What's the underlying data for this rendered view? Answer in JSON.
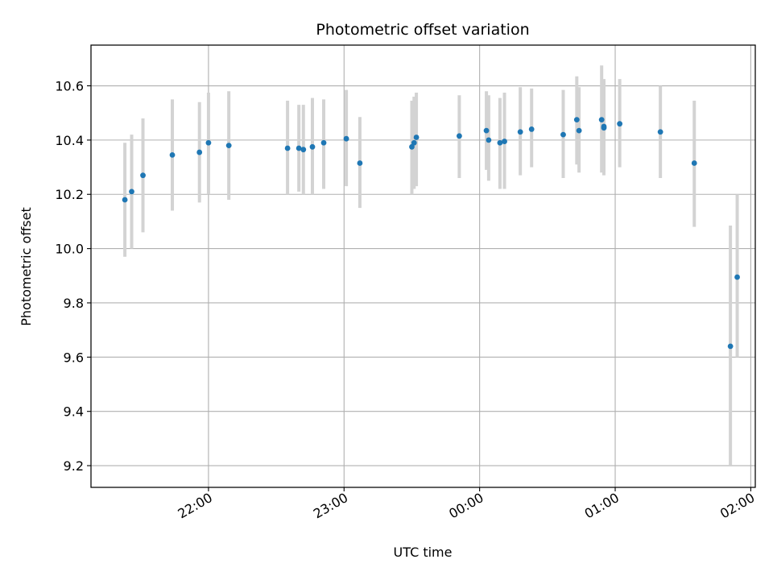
{
  "chart_data": {
    "type": "scatter",
    "title": "Photometric offset variation",
    "xlabel": "UTC time",
    "ylabel": "Photometric offset",
    "x_ticks": [
      "22:00",
      "23:00",
      "00:00",
      "01:00",
      "02:00"
    ],
    "y_ticks": [
      "9.2",
      "9.4",
      "9.6",
      "9.8",
      "10.0",
      "10.2",
      "10.4",
      "10.6"
    ],
    "xlim": [
      "21:08",
      "02:02"
    ],
    "ylim": [
      9.12,
      10.75
    ],
    "grid": true,
    "colors": {
      "points": "#1f77b4",
      "error_bars": "#d3d3d3",
      "grid": "#b0b0b0"
    },
    "points": [
      {
        "x": "21:23",
        "y": 10.18,
        "lo": 9.97,
        "hi": 10.39
      },
      {
        "x": "21:26",
        "y": 10.21,
        "lo": 10.0,
        "hi": 10.42
      },
      {
        "x": "21:31",
        "y": 10.27,
        "lo": 10.06,
        "hi": 10.48
      },
      {
        "x": "21:44",
        "y": 10.345,
        "lo": 10.14,
        "hi": 10.55
      },
      {
        "x": "21:56",
        "y": 10.355,
        "lo": 10.17,
        "hi": 10.54
      },
      {
        "x": "22:00",
        "y": 10.39,
        "lo": 10.2,
        "hi": 10.575
      },
      {
        "x": "22:09",
        "y": 10.38,
        "lo": 10.18,
        "hi": 10.58
      },
      {
        "x": "22:35",
        "y": 10.37,
        "lo": 10.2,
        "hi": 10.545
      },
      {
        "x": "22:40",
        "y": 10.37,
        "lo": 10.21,
        "hi": 10.53
      },
      {
        "x": "22:42",
        "y": 10.365,
        "lo": 10.2,
        "hi": 10.53
      },
      {
        "x": "22:46",
        "y": 10.375,
        "lo": 10.2,
        "hi": 10.555
      },
      {
        "x": "22:51",
        "y": 10.39,
        "lo": 10.22,
        "hi": 10.55
      },
      {
        "x": "23:01",
        "y": 10.405,
        "lo": 10.23,
        "hi": 10.585
      },
      {
        "x": "23:07",
        "y": 10.315,
        "lo": 10.15,
        "hi": 10.485
      },
      {
        "x": "23:30",
        "y": 10.375,
        "lo": 10.2,
        "hi": 10.545
      },
      {
        "x": "23:31",
        "y": 10.39,
        "lo": 10.22,
        "hi": 10.56
      },
      {
        "x": "23:32",
        "y": 10.41,
        "lo": 10.23,
        "hi": 10.575
      },
      {
        "x": "23:51",
        "y": 10.415,
        "lo": 10.26,
        "hi": 10.565
      },
      {
        "x": "00:03",
        "y": 10.435,
        "lo": 10.29,
        "hi": 10.58
      },
      {
        "x": "00:04",
        "y": 10.4,
        "lo": 10.25,
        "hi": 10.565
      },
      {
        "x": "00:09",
        "y": 10.39,
        "lo": 10.22,
        "hi": 10.555
      },
      {
        "x": "00:11",
        "y": 10.395,
        "lo": 10.22,
        "hi": 10.575
      },
      {
        "x": "00:18",
        "y": 10.43,
        "lo": 10.27,
        "hi": 10.595
      },
      {
        "x": "00:23",
        "y": 10.44,
        "lo": 10.3,
        "hi": 10.59
      },
      {
        "x": "00:37",
        "y": 10.42,
        "lo": 10.26,
        "hi": 10.585
      },
      {
        "x": "00:43",
        "y": 10.475,
        "lo": 10.31,
        "hi": 10.635
      },
      {
        "x": "00:44",
        "y": 10.435,
        "lo": 10.28,
        "hi": 10.595
      },
      {
        "x": "00:54",
        "y": 10.475,
        "lo": 10.28,
        "hi": 10.675
      },
      {
        "x": "00:55",
        "y": 10.45,
        "lo": 10.28,
        "hi": 10.625
      },
      {
        "x": "00:55",
        "y": 10.445,
        "lo": 10.27,
        "hi": 10.615
      },
      {
        "x": "01:02",
        "y": 10.46,
        "lo": 10.3,
        "hi": 10.625
      },
      {
        "x": "01:20",
        "y": 10.43,
        "lo": 10.26,
        "hi": 10.6
      },
      {
        "x": "01:35",
        "y": 10.315,
        "lo": 10.08,
        "hi": 10.545
      },
      {
        "x": "01:51",
        "y": 9.64,
        "lo": 9.2,
        "hi": 10.085
      },
      {
        "x": "01:54",
        "y": 9.895,
        "lo": 9.6,
        "hi": 10.2
      }
    ]
  }
}
